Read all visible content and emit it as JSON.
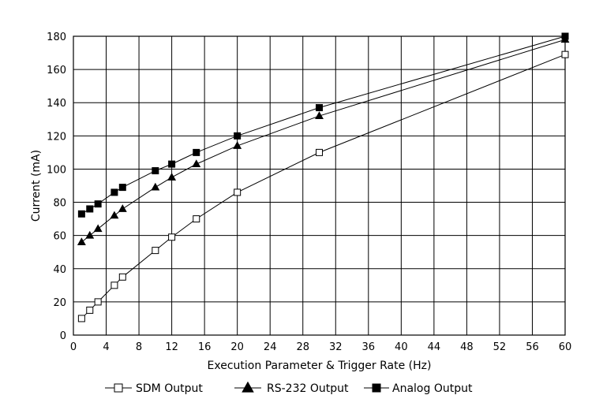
{
  "chart_data": {
    "type": "line",
    "title": "",
    "xlabel": "Execution Parameter & Trigger Rate (Hz)",
    "ylabel": "Current (mA)",
    "xlim": [
      0,
      60
    ],
    "ylim": [
      0,
      180
    ],
    "x_ticks": [
      "0",
      "4",
      "8",
      "12",
      "16",
      "20",
      "24",
      "28",
      "32",
      "36",
      "40",
      "44",
      "48",
      "52",
      "56",
      "60"
    ],
    "y_ticks": [
      "0",
      "20",
      "40",
      "60",
      "80",
      "100",
      "120",
      "140",
      "160",
      "180"
    ],
    "x_tick_values": [
      0,
      4,
      8,
      12,
      16,
      20,
      24,
      28,
      32,
      36,
      40,
      44,
      48,
      52,
      56,
      60
    ],
    "y_tick_values": [
      0,
      20,
      40,
      60,
      80,
      100,
      120,
      140,
      160,
      180
    ],
    "grid": true,
    "legend_position": "bottom",
    "series": [
      {
        "name": "SDM Output",
        "marker": "open-square",
        "color": "#000000",
        "x": [
          1,
          2,
          3,
          5,
          6,
          10,
          12,
          15,
          20,
          30,
          60
        ],
        "y": [
          10,
          15,
          20,
          30,
          35,
          51,
          59,
          70,
          86,
          110,
          169
        ]
      },
      {
        "name": "RS-232 Output",
        "marker": "filled-triangle",
        "color": "#000000",
        "x": [
          1,
          2,
          3,
          5,
          6,
          10,
          12,
          15,
          20,
          30,
          60
        ],
        "y": [
          56,
          60,
          64,
          72,
          76,
          89,
          95,
          103,
          114,
          132,
          178
        ]
      },
      {
        "name": "Analog Output",
        "marker": "filled-square",
        "color": "#000000",
        "x": [
          1,
          2,
          3,
          5,
          6,
          10,
          12,
          15,
          20,
          30,
          60
        ],
        "y": [
          73,
          76,
          79,
          86,
          89,
          99,
          103,
          110,
          120,
          137,
          180
        ]
      }
    ]
  }
}
